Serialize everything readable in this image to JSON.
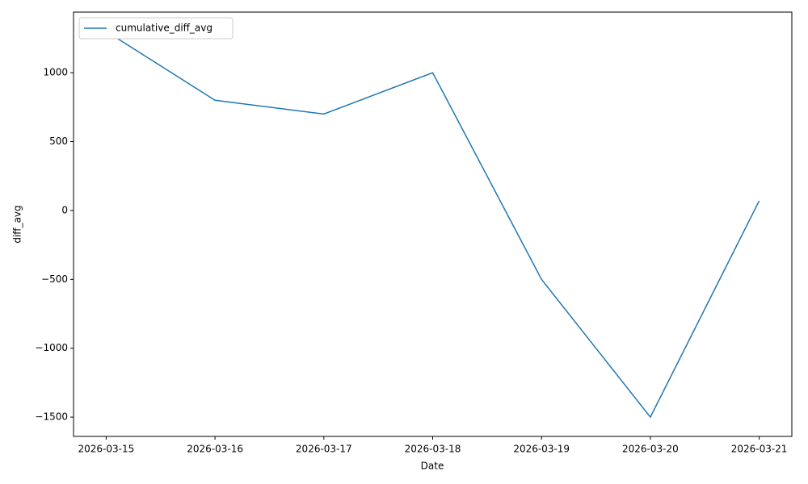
{
  "chart_data": {
    "type": "line",
    "x": [
      "2026-03-15",
      "2026-03-16",
      "2026-03-17",
      "2026-03-18",
      "2026-03-19",
      "2026-03-20",
      "2026-03-21"
    ],
    "series": [
      {
        "name": "cumulative_diff_avg",
        "color": "#1f77b4",
        "values": [
          1300,
          800,
          700,
          1000,
          -500,
          -1500,
          70
        ]
      }
    ],
    "xlabel": "Date",
    "ylabel": "diff_avg",
    "ylim": [
      -1640,
      1440
    ],
    "yticks": [
      {
        "value": -1500,
        "label": "−1500"
      },
      {
        "value": -1000,
        "label": "−1000"
      },
      {
        "value": -500,
        "label": "−500"
      },
      0,
      500,
      1000
    ],
    "legend": "upper-left"
  }
}
